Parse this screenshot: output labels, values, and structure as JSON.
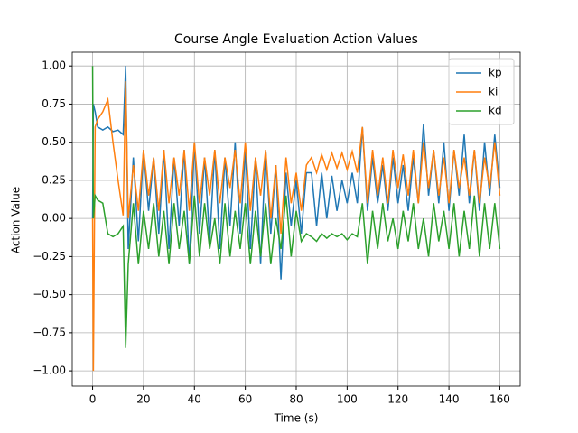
{
  "chart_data": {
    "type": "line",
    "title": "Course Angle Evaluation Action Values",
    "xlabel": "Time (s)",
    "ylabel": "Action Value",
    "x": [
      0,
      0.3,
      1,
      2,
      4,
      6,
      8,
      10,
      12,
      13,
      14,
      16,
      18,
      20,
      22,
      24,
      26,
      28,
      30,
      32,
      34,
      36,
      38,
      40,
      42,
      44,
      46,
      48,
      50,
      52,
      54,
      56,
      58,
      60,
      62,
      64,
      66,
      68,
      70,
      72,
      74,
      76,
      78,
      80,
      82,
      84,
      86,
      88,
      90,
      92,
      94,
      96,
      98,
      100,
      102,
      104,
      106,
      108,
      110,
      112,
      114,
      116,
      118,
      120,
      122,
      124,
      126,
      128,
      130,
      132,
      134,
      136,
      138,
      140,
      142,
      144,
      146,
      148,
      150,
      152,
      154,
      156,
      158,
      160
    ],
    "series": [
      {
        "name": "kp",
        "color": "#1f77b4",
        "values": [
          0,
          0.75,
          0.7,
          0.6,
          0.58,
          0.6,
          0.57,
          0.58,
          0.55,
          1.0,
          -0.2,
          0.4,
          -0.15,
          0.45,
          0.05,
          0.4,
          -0.1,
          0.45,
          -0.2,
          0.4,
          -0.05,
          0.45,
          -0.3,
          0.5,
          -0.1,
          0.4,
          -0.15,
          0.45,
          -0.2,
          0.4,
          -0.05,
          0.5,
          -0.1,
          0.45,
          -0.2,
          0.4,
          -0.3,
          0.45,
          -0.1,
          0.35,
          -0.4,
          0.3,
          -0.05,
          0.25,
          -0.1,
          0.3,
          0.3,
          -0.05,
          0.3,
          0.0,
          0.28,
          0.05,
          0.25,
          0.1,
          0.3,
          0.1,
          0.6,
          0.05,
          0.4,
          0.1,
          0.35,
          0.05,
          0.4,
          0.1,
          0.35,
          0.05,
          0.4,
          0.1,
          0.62,
          0.15,
          0.45,
          0.1,
          0.5,
          0.05,
          0.45,
          0.15,
          0.55,
          0.1,
          0.45,
          0.05,
          0.5,
          0.15,
          0.55,
          0.2
        ]
      },
      {
        "name": "ki",
        "color": "#ff7f0e",
        "values": [
          0,
          -1.0,
          0.6,
          0.65,
          0.7,
          0.78,
          0.5,
          0.25,
          0.02,
          0.9,
          0.0,
          0.35,
          0.05,
          0.45,
          0.15,
          0.4,
          0.05,
          0.45,
          0.1,
          0.4,
          0.15,
          0.45,
          0.05,
          0.5,
          0.1,
          0.4,
          0.15,
          0.45,
          0.1,
          0.4,
          0.2,
          0.45,
          0.1,
          0.5,
          0.05,
          0.4,
          0.15,
          0.45,
          0.0,
          0.35,
          -0.1,
          0.4,
          0.1,
          0.3,
          0.05,
          0.35,
          0.4,
          0.3,
          0.42,
          0.32,
          0.43,
          0.33,
          0.43,
          0.32,
          0.44,
          0.3,
          0.6,
          0.1,
          0.45,
          0.15,
          0.4,
          0.1,
          0.45,
          0.2,
          0.42,
          0.15,
          0.45,
          0.1,
          0.5,
          0.2,
          0.45,
          0.15,
          0.4,
          0.1,
          0.45,
          0.2,
          0.4,
          0.15,
          0.45,
          0.1,
          0.4,
          0.2,
          0.5,
          0.15
        ]
      },
      {
        "name": "kd",
        "color": "#2ca02c",
        "values": [
          1.0,
          0.0,
          0.15,
          0.12,
          0.1,
          -0.1,
          -0.12,
          -0.1,
          -0.05,
          -0.85,
          -0.3,
          0.1,
          -0.3,
          0.05,
          -0.2,
          0.1,
          -0.25,
          0.05,
          -0.3,
          0.1,
          -0.2,
          0.05,
          -0.3,
          0.15,
          -0.25,
          0.1,
          -0.2,
          0.0,
          -0.3,
          0.1,
          -0.25,
          0.05,
          -0.2,
          0.1,
          -0.3,
          0.05,
          -0.25,
          0.1,
          -0.3,
          0.0,
          -0.2,
          0.15,
          -0.25,
          0.05,
          -0.15,
          -0.1,
          -0.12,
          -0.15,
          -0.1,
          -0.13,
          -0.1,
          -0.12,
          -0.1,
          -0.14,
          -0.1,
          -0.12,
          0.1,
          -0.3,
          0.05,
          -0.2,
          0.1,
          -0.15,
          0.0,
          -0.2,
          0.05,
          -0.15,
          0.1,
          -0.2,
          0.0,
          -0.25,
          0.1,
          -0.15,
          0.05,
          -0.2,
          0.1,
          -0.25,
          0.05,
          -0.2,
          0.15,
          -0.25,
          0.1,
          -0.2,
          0.1,
          -0.2
        ]
      }
    ],
    "xlim": [
      -8,
      168
    ],
    "xticks": [
      0,
      20,
      40,
      60,
      80,
      100,
      120,
      140,
      160
    ],
    "ylim": [
      -1.1,
      1.09
    ],
    "yticks": [
      {
        "value": -1.0,
        "label": "−1.00"
      },
      {
        "value": -0.75,
        "label": "−0.75"
      },
      {
        "value": -0.5,
        "label": "−0.50"
      },
      {
        "value": -0.25,
        "label": "−0.25"
      },
      {
        "value": 0,
        "label": "0.00"
      },
      {
        "value": 0.25,
        "label": "0.25"
      },
      {
        "value": 0.5,
        "label": "0.50"
      },
      {
        "value": 0.75,
        "label": "0.75"
      },
      {
        "value": 1.0,
        "label": "1.00"
      }
    ],
    "grid": true,
    "legend": "upper right"
  }
}
